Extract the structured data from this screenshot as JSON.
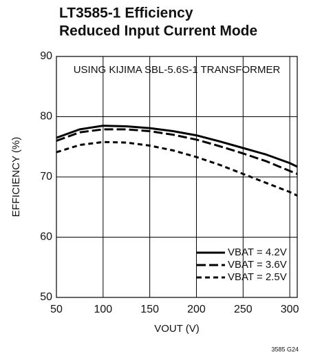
{
  "chart_data": {
    "type": "line",
    "title": [
      "LT3585-1 Efficiency",
      "Reduced Input Current Mode"
    ],
    "x_label": "VOUT (V)",
    "y_label": "EFFICIENCY (%)",
    "annotation": "USING KIJIMA SBL-5.6S-1 TRANSFORMER",
    "footnote": "3585 G24",
    "x": [
      50,
      75,
      100,
      125,
      150,
      175,
      200,
      225,
      250,
      275,
      300,
      308
    ],
    "series": [
      {
        "name": "VBAT = 4.2V",
        "color": "#000000",
        "dash": "none",
        "values": [
          76.5,
          77.9,
          78.5,
          78.4,
          78.1,
          77.6,
          76.9,
          75.9,
          74.8,
          73.7,
          72.3,
          71.7
        ]
      },
      {
        "name": "VBAT = 3.6V",
        "color": "#000000",
        "dash": "13 5",
        "values": [
          76.0,
          77.4,
          77.9,
          77.9,
          77.6,
          77.0,
          76.2,
          75.1,
          73.9,
          72.6,
          71.0,
          70.5
        ]
      },
      {
        "name": "VBAT = 2.5V",
        "color": "#000000",
        "dash": "7 5",
        "values": [
          74.1,
          75.3,
          75.8,
          75.7,
          75.2,
          74.4,
          73.3,
          72.0,
          70.5,
          69.0,
          67.5,
          66.9
        ]
      }
    ],
    "xlim": [
      50,
      308
    ],
    "ylim": [
      50,
      90
    ],
    "xticks": [
      50,
      100,
      150,
      200,
      250,
      300
    ],
    "yticks": [
      50,
      60,
      70,
      80,
      90
    ],
    "grid": true,
    "legend": "lower right"
  }
}
